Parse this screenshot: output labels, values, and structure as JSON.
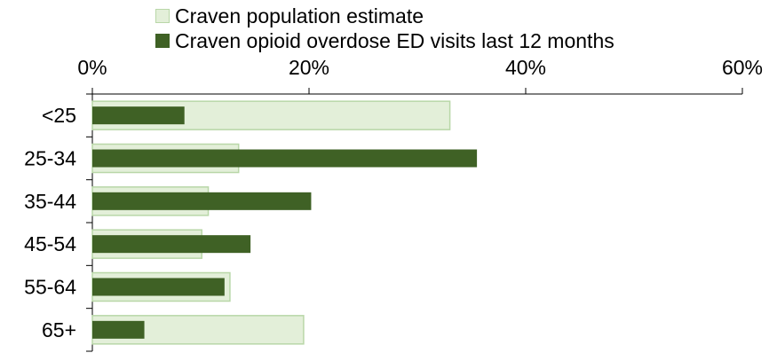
{
  "chart_data": {
    "type": "bar",
    "orientation": "horizontal",
    "title": "",
    "categories": [
      "<25",
      "25-34",
      "35-44",
      "45-54",
      "55-64",
      "65+"
    ],
    "series": [
      {
        "name": "Craven population estimate",
        "values": [
          33.0,
          13.5,
          10.7,
          10.1,
          12.7,
          19.5
        ],
        "color": "#e3efd9",
        "border": "#b9d7a8"
      },
      {
        "name": "Craven opioid overdose ED visits last 12 months",
        "values": [
          8.5,
          35.5,
          20.2,
          14.6,
          12.2,
          4.8
        ],
        "color": "#3f6125"
      }
    ],
    "xlim": [
      0,
      60
    ],
    "xticks": [
      "0%",
      "20%",
      "40%",
      "60%"
    ],
    "x_axis_position": "top",
    "legend_position": "top",
    "grid": false
  }
}
